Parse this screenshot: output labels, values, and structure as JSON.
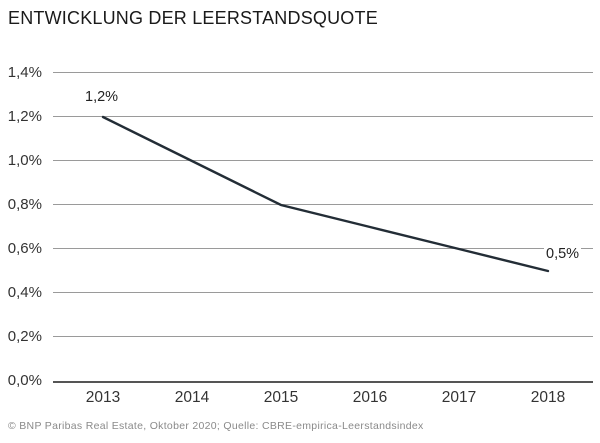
{
  "title": "ENTWICKLUNG DER LEERSTANDSQUOTE",
  "footer": "© BNP Paribas Real Estate, Oktober 2020; Quelle: CBRE-empirica-Leerstandsindex",
  "chart_data": {
    "type": "line",
    "title": "ENTWICKLUNG DER LEERSTANDSQUOTE",
    "x": [
      "2013",
      "2014",
      "2015",
      "2016",
      "2017",
      "2018"
    ],
    "values": [
      1.2,
      1.0,
      0.8,
      0.7,
      0.6,
      0.5
    ],
    "unit": "%",
    "ylim": [
      0,
      1.4
    ],
    "y_tick_step": 0.2,
    "y_tick_labels": [
      "0,0%",
      "0,2%",
      "0,4%",
      "0,6%",
      "0,8%",
      "1,0%",
      "1,2%",
      "1,4%"
    ],
    "grid": "horizontal",
    "legend": "none",
    "point_labels": [
      {
        "index": 0,
        "text": "1,2%",
        "placement": "above"
      },
      {
        "index": 5,
        "text": "0,5%",
        "placement": "right"
      }
    ],
    "colors": {
      "line": "#232d36",
      "grid": "#9a9a9a",
      "axis": "#555555",
      "title": "#1a1a1a",
      "tick": "#333333",
      "footer": "#8a8a8a",
      "background": "#ffffff"
    }
  }
}
